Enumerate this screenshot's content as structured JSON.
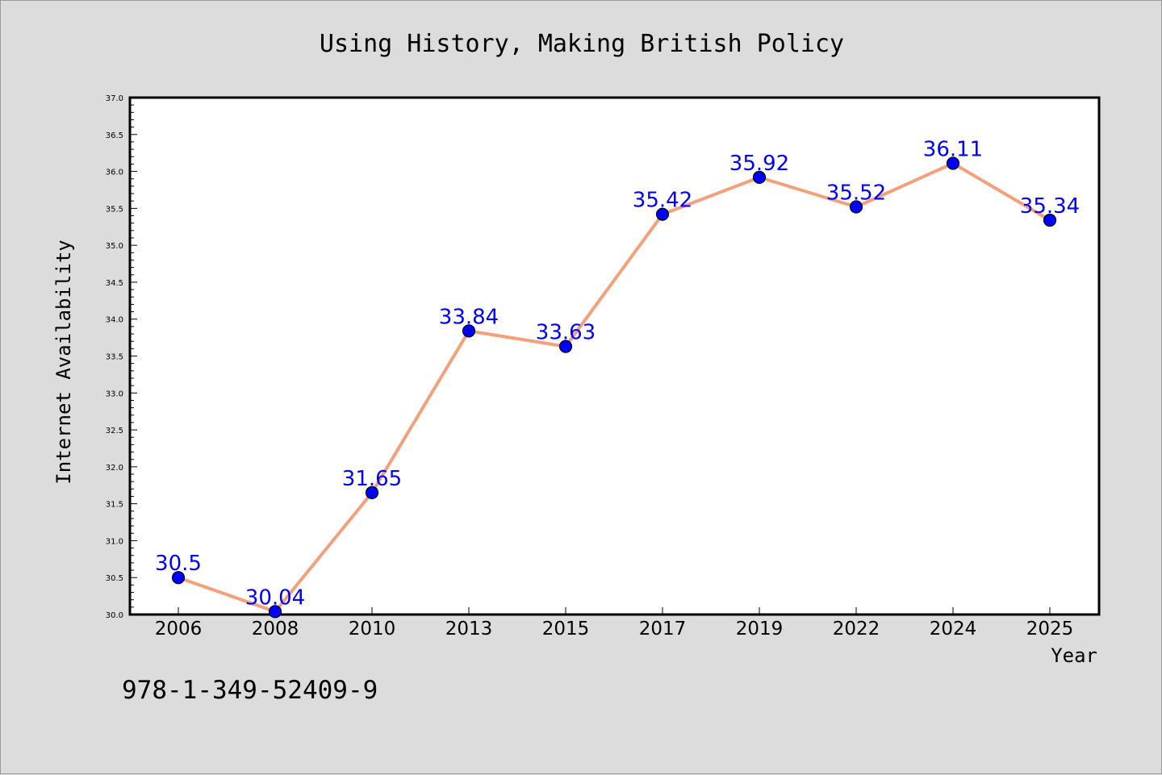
{
  "chart_data": {
    "type": "line",
    "title": "Using History, Making British Policy",
    "xlabel": "Year",
    "ylabel": "Internet Availability",
    "categories": [
      "2006",
      "2008",
      "2010",
      "2013",
      "2015",
      "2017",
      "2019",
      "2022",
      "2024",
      "2025"
    ],
    "series": [
      {
        "values": [
          30.5,
          30.04,
          31.65,
          33.84,
          33.63,
          35.42,
          35.92,
          35.52,
          36.11,
          35.34
        ],
        "value_labels": [
          "30.5",
          "30.04",
          "31.65",
          "33.84",
          "33.63",
          "35.42",
          "35.92",
          "35.52",
          "36.11",
          "35.34"
        ],
        "line_color": "#f4a07a",
        "marker_color": "#0000ff"
      }
    ],
    "ylim": [
      30.0,
      37.0
    ],
    "yticks": [
      "30.0",
      "30.5",
      "31.0",
      "31.5",
      "32.0",
      "32.5",
      "33.0",
      "33.5",
      "34.0",
      "34.5",
      "35.0",
      "35.5",
      "36.0",
      "36.5",
      "37.0"
    ],
    "grid": false,
    "legend": "none",
    "label_color": "#0000ff",
    "background": "#dcdcdc",
    "plot_background": "#ffffff"
  },
  "annotation": "978-1-349-52409-9"
}
